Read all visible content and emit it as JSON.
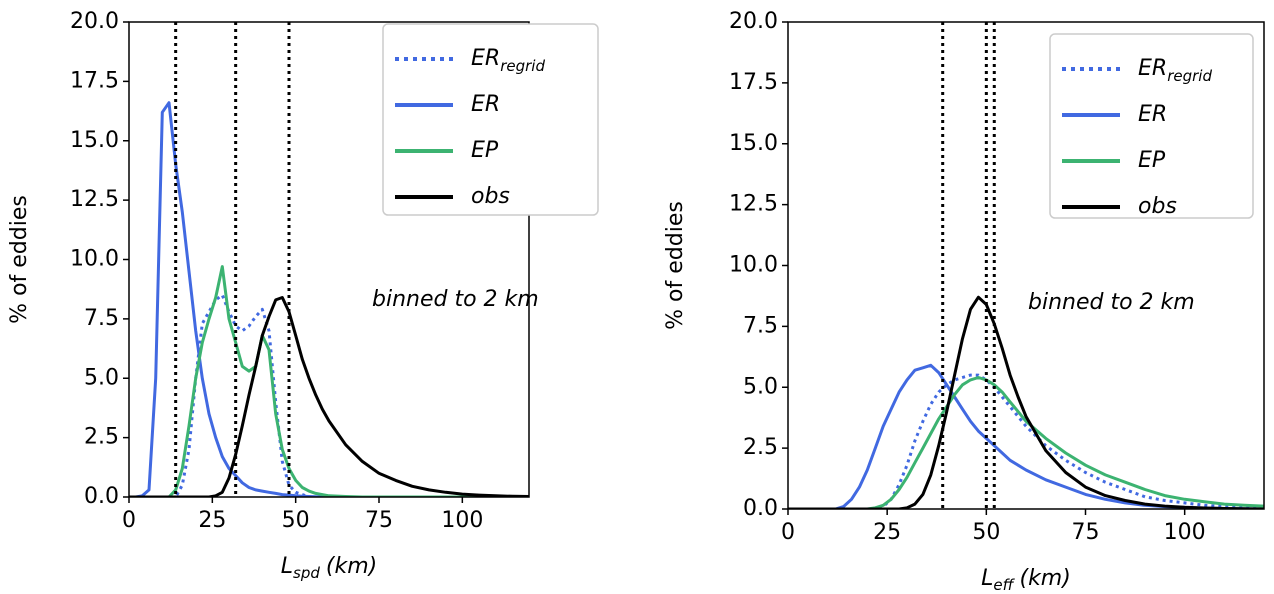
{
  "chart_data": [
    {
      "type": "line",
      "xlabel": {
        "text": "L",
        "sub": "spd",
        "unit": "(km)"
      },
      "ylabel": "% of eddies",
      "annotation": "binned to 2 km",
      "xlim": [
        0,
        120
      ],
      "ylim": [
        0,
        20
      ],
      "xticks": [
        0,
        25,
        50,
        75,
        100
      ],
      "yticks": [
        {
          "value": 0,
          "label": "0.0"
        },
        2.5,
        {
          "value": 5,
          "label": "5.0"
        },
        7.5,
        {
          "value": 10,
          "label": "10.0"
        },
        12.5,
        {
          "value": 15,
          "label": "15.0"
        },
        17.5,
        {
          "value": 20,
          "label": "20.0"
        }
      ],
      "vlines": [
        14,
        32,
        48
      ],
      "x": [
        0,
        2,
        4,
        6,
        8,
        10,
        12,
        14,
        16,
        18,
        20,
        22,
        24,
        26,
        28,
        30,
        32,
        34,
        36,
        38,
        40,
        42,
        44,
        46,
        48,
        50,
        52,
        54,
        56,
        58,
        60,
        65,
        70,
        75,
        80,
        85,
        90,
        95,
        100,
        105,
        110,
        115,
        120
      ],
      "series": [
        {
          "name": "ER",
          "subscript": "regrid",
          "color": "#4169e1",
          "dash": "dotted",
          "values": [
            0,
            0,
            0,
            0,
            0,
            0,
            0,
            0,
            0.5,
            2,
            5,
            7.3,
            7.8,
            8.3,
            8.5,
            7.8,
            7.2,
            7.0,
            7.2,
            7.6,
            7.9,
            7.0,
            4.0,
            1.5,
            0.5,
            0.2,
            0.1,
            0,
            0,
            0,
            0,
            0,
            0,
            0,
            0,
            0,
            0,
            0,
            0,
            0,
            0,
            0,
            0
          ]
        },
        {
          "name": "ER",
          "color": "#4169e1",
          "values": [
            0,
            0,
            0.05,
            0.3,
            5,
            16.2,
            16.6,
            14,
            12,
            9.5,
            7,
            5,
            3.5,
            2.5,
            1.7,
            1.2,
            0.9,
            0.6,
            0.4,
            0.3,
            0.25,
            0.2,
            0.15,
            0.1,
            0.08,
            0.05,
            0.03,
            0.02,
            0.01,
            0,
            0,
            0,
            0,
            0,
            0,
            0,
            0,
            0,
            0,
            0,
            0,
            0,
            0
          ]
        },
        {
          "name": "EP",
          "color": "#3cb371",
          "values": [
            0,
            0,
            0,
            0,
            0,
            0,
            0,
            0.3,
            1.2,
            3,
            5,
            6.5,
            7.5,
            8.4,
            9.7,
            7.5,
            6.5,
            5.5,
            5.3,
            5.5,
            6.8,
            6.2,
            3.5,
            2,
            1.2,
            0.7,
            0.4,
            0.25,
            0.15,
            0.1,
            0.05,
            0.02,
            0,
            0,
            0,
            0,
            0,
            0,
            0,
            0,
            0,
            0,
            0
          ]
        },
        {
          "name": "obs",
          "color": "#000000",
          "values": [
            0,
            0,
            0,
            0,
            0,
            0,
            0,
            0,
            0,
            0,
            0,
            0,
            0,
            0.05,
            0.2,
            0.8,
            1.8,
            3,
            4.3,
            5.5,
            6.8,
            7.6,
            8.3,
            8.4,
            7.8,
            6.8,
            5.8,
            5,
            4.3,
            3.7,
            3.2,
            2.2,
            1.5,
            1.0,
            0.7,
            0.45,
            0.3,
            0.2,
            0.12,
            0.08,
            0.05,
            0.03,
            0.02
          ]
        }
      ]
    },
    {
      "type": "line",
      "xlabel": {
        "text": "L",
        "sub": "eff",
        "unit": "(km)"
      },
      "ylabel": "% of eddies",
      "annotation": "binned to 2 km",
      "xlim": [
        0,
        120
      ],
      "ylim": [
        0,
        20
      ],
      "xticks": [
        0,
        25,
        50,
        75,
        100
      ],
      "yticks": [
        {
          "value": 0,
          "label": "0.0"
        },
        2.5,
        {
          "value": 5,
          "label": "5.0"
        },
        7.5,
        {
          "value": 10,
          "label": "10.0"
        },
        12.5,
        {
          "value": 15,
          "label": "15.0"
        },
        17.5,
        {
          "value": 20,
          "label": "20.0"
        }
      ],
      "vlines": [
        39,
        50,
        52
      ],
      "x": [
        0,
        2,
        4,
        6,
        8,
        10,
        12,
        14,
        16,
        18,
        20,
        22,
        24,
        26,
        28,
        30,
        32,
        34,
        36,
        38,
        40,
        42,
        44,
        46,
        48,
        50,
        52,
        54,
        56,
        58,
        60,
        65,
        70,
        75,
        80,
        85,
        90,
        95,
        100,
        105,
        110,
        115,
        120
      ],
      "series": [
        {
          "name": "ER",
          "subscript": "regrid",
          "color": "#4169e1",
          "dash": "dotted",
          "values": [
            0,
            0,
            0,
            0,
            0,
            0,
            0,
            0,
            0,
            0,
            0,
            0,
            0.1,
            0.4,
            1,
            1.8,
            2.8,
            3.6,
            4.3,
            4.8,
            5.1,
            5.3,
            5.4,
            5.5,
            5.5,
            5.3,
            5.0,
            4.6,
            4.2,
            3.8,
            3.4,
            2.6,
            2.0,
            1.5,
            1.1,
            0.8,
            0.5,
            0.35,
            0.25,
            0.15,
            0.1,
            0.05,
            0.03
          ]
        },
        {
          "name": "ER",
          "color": "#4169e1",
          "values": [
            0,
            0,
            0,
            0,
            0,
            0,
            0,
            0.1,
            0.4,
            0.9,
            1.6,
            2.5,
            3.4,
            4.1,
            4.8,
            5.3,
            5.7,
            5.8,
            5.9,
            5.6,
            5.1,
            4.6,
            4.1,
            3.6,
            3.2,
            2.9,
            2.6,
            2.3,
            2.0,
            1.8,
            1.6,
            1.2,
            0.9,
            0.6,
            0.4,
            0.25,
            0.15,
            0.1,
            0.06,
            0.04,
            0.02,
            0.01,
            0
          ]
        },
        {
          "name": "EP",
          "color": "#3cb371",
          "values": [
            0,
            0,
            0,
            0,
            0,
            0,
            0,
            0,
            0,
            0,
            0,
            0.05,
            0.15,
            0.4,
            0.8,
            1.3,
            1.9,
            2.5,
            3.1,
            3.7,
            4.2,
            4.7,
            5.1,
            5.3,
            5.4,
            5.3,
            5.1,
            4.8,
            4.4,
            4.0,
            3.6,
            2.9,
            2.3,
            1.8,
            1.4,
            1.1,
            0.8,
            0.55,
            0.4,
            0.3,
            0.2,
            0.15,
            0.12
          ]
        },
        {
          "name": "obs",
          "color": "#000000",
          "values": [
            0,
            0,
            0,
            0,
            0,
            0,
            0,
            0,
            0,
            0,
            0,
            0,
            0,
            0,
            0,
            0.05,
            0.2,
            0.6,
            1.4,
            2.6,
            4.0,
            5.5,
            7.0,
            8.2,
            8.7,
            8.4,
            7.6,
            6.6,
            5.5,
            4.6,
            3.8,
            2.4,
            1.5,
            0.9,
            0.55,
            0.35,
            0.2,
            0.12,
            0.07,
            0.04,
            0.02,
            0.01,
            0
          ]
        }
      ]
    }
  ]
}
